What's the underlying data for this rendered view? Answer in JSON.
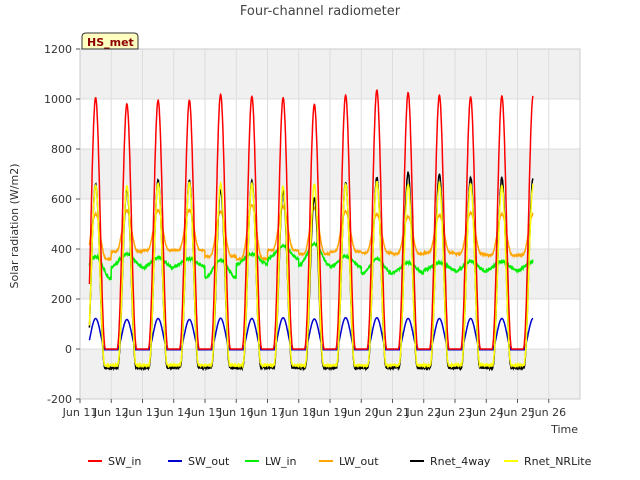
{
  "chart_data": {
    "type": "line",
    "title": "Four-channel radiometer",
    "xlabel": "Time",
    "ylabel": "Solar radiation (W/m2)",
    "site_badge": "HS_met",
    "ylim": [
      -200,
      1200
    ],
    "xlim": [
      10,
      26
    ],
    "yticks": [
      -200,
      0,
      200,
      400,
      600,
      800,
      1000,
      1200
    ],
    "xticks": [
      {
        "v": 10,
        "label": "Jun 11"
      },
      {
        "v": 11,
        "label": "Jun 12"
      },
      {
        "v": 12,
        "label": "Jun 13"
      },
      {
        "v": 13,
        "label": "Jun 14"
      },
      {
        "v": 14,
        "label": "Jun 15"
      },
      {
        "v": 15,
        "label": "Jun 16"
      },
      {
        "v": 16,
        "label": "Jun 17"
      },
      {
        "v": 17,
        "label": "Jun 18"
      },
      {
        "v": 18,
        "label": "Jun 19"
      },
      {
        "v": 19,
        "label": "Jun 20"
      },
      {
        "v": 20,
        "label": "Jun 21"
      },
      {
        "v": 21,
        "label": "Jun 22"
      },
      {
        "v": 22,
        "label": "Jun 23"
      },
      {
        "v": 23,
        "label": "Jun 24"
      },
      {
        "v": 24,
        "label": "Jun 25"
      },
      {
        "v": 25,
        "label": "Jun 26"
      }
    ],
    "x_start": 10.3,
    "x_end": 24.5,
    "days": [
      11,
      12,
      13,
      14,
      15,
      16,
      17,
      18,
      19,
      20,
      21,
      22,
      23,
      24
    ],
    "series": [
      {
        "name": "SW_in",
        "color": "#ff0000",
        "daily_peak": [
          1005,
          980,
          995,
          995,
          1018,
          1010,
          1005,
          978,
          1015,
          1035,
          1025,
          1015,
          1008,
          1012
        ],
        "night": 0
      },
      {
        "name": "SW_out",
        "color": "#0000cc",
        "daily_peak": [
          122,
          118,
          122,
          118,
          123,
          122,
          125,
          120,
          125,
          125,
          122,
          122,
          122,
          122
        ],
        "night": -3
      },
      {
        "name": "LW_in",
        "color": "#00ee00",
        "daily_peak": [
          370,
          380,
          365,
          360,
          355,
          380,
          410,
          420,
          370,
          360,
          345,
          345,
          350,
          350
        ],
        "daily_low": [
          280,
          330,
          325,
          330,
          285,
          340,
          360,
          335,
          330,
          300,
          305,
          318,
          310,
          315
        ]
      },
      {
        "name": "LW_out",
        "color": "#ffa500",
        "daily_peak": [
          540,
          555,
          555,
          555,
          550,
          575,
          570,
          565,
          550,
          540,
          530,
          535,
          545,
          540
        ],
        "daily_low": [
          360,
          390,
          395,
          395,
          370,
          360,
          395,
          380,
          390,
          385,
          380,
          385,
          380,
          375
        ]
      },
      {
        "name": "Rnet_4way",
        "color": "#000000",
        "daily_peak": [
          660,
          640,
          675,
          675,
          635,
          670,
          630,
          605,
          665,
          685,
          705,
          700,
          685,
          685
        ],
        "night": -75
      },
      {
        "name": "Rnet_NRLite",
        "color": "#ffff00",
        "daily_peak": [
          655,
          650,
          665,
          665,
          660,
          660,
          650,
          660,
          660,
          670,
          660,
          660,
          660,
          655
        ],
        "night": -65
      }
    ]
  }
}
